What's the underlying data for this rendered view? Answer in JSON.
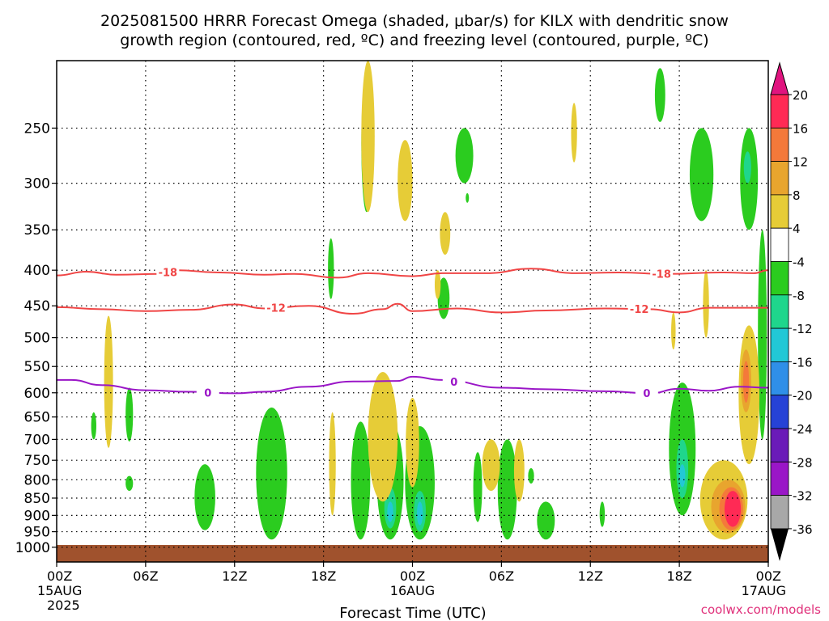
{
  "title_line1": "2025081500 HRRR Forecast Omega (shaded, μbar/s) for KILX with dendritic snow",
  "title_line2": "growth region (contoured, red, ºC) and freezing level (contoured, purple, ºC)",
  "credit": "coolwx.com/models",
  "chart_data": {
    "type": "heatmap",
    "xlabel": "Forecast Time (UTC)",
    "ylabel": "",
    "xlim_hours": [
      0,
      48
    ],
    "ylim": [
      1050,
      200
    ],
    "yscale": "log",
    "grid": true,
    "x_ticks": [
      {
        "h": 0,
        "label": "00Z",
        "sub": "15AUG",
        "sub2": "2025"
      },
      {
        "h": 6,
        "label": "06Z"
      },
      {
        "h": 12,
        "label": "12Z"
      },
      {
        "h": 18,
        "label": "18Z"
      },
      {
        "h": 24,
        "label": "00Z",
        "sub": "16AUG"
      },
      {
        "h": 30,
        "label": "06Z"
      },
      {
        "h": 36,
        "label": "12Z"
      },
      {
        "h": 42,
        "label": "18Z"
      },
      {
        "h": 48,
        "label": "00Z",
        "sub": "17AUG"
      }
    ],
    "y_ticks": [
      250,
      300,
      350,
      400,
      450,
      500,
      550,
      600,
      650,
      700,
      750,
      800,
      850,
      900,
      950,
      1000
    ],
    "colorbar": {
      "levels": [
        "20",
        "16",
        "12",
        "8",
        "4",
        "-4",
        "-8",
        "-12",
        "-16",
        "-20",
        "-24",
        "-28",
        "-32",
        "-36"
      ],
      "colors": [
        "#ff2a55",
        "#f4793a",
        "#e8a52e",
        "#e6cc37",
        "#ffffff",
        "#2bcc1f",
        "#1fd68c",
        "#22c8d6",
        "#2f8fe8",
        "#2642d6",
        "#6a1bb8",
        "#9a16c7",
        "#a8a8a8"
      ],
      "top_color": "#e0147f",
      "bottom_color": "#000000"
    },
    "contours": [
      {
        "name": "-18",
        "color": "#f04545",
        "label_hours": [
          7.5,
          40.8
        ],
        "points": [
          [
            0,
            407
          ],
          [
            2,
            402
          ],
          [
            4,
            406
          ],
          [
            7,
            405
          ],
          [
            8,
            400
          ],
          [
            11,
            403
          ],
          [
            14,
            406
          ],
          [
            16,
            405
          ],
          [
            19,
            410
          ],
          [
            21,
            404
          ],
          [
            24,
            408
          ],
          [
            26,
            404
          ],
          [
            29,
            404
          ],
          [
            32,
            398
          ],
          [
            35,
            404
          ],
          [
            38,
            403
          ],
          [
            41,
            405
          ],
          [
            45,
            403
          ],
          [
            47,
            404
          ],
          [
            48,
            400
          ]
        ]
      },
      {
        "name": "-12",
        "color": "#f04545",
        "label_hours": [
          14.8,
          39.3
        ],
        "points": [
          [
            0,
            452
          ],
          [
            3,
            455
          ],
          [
            6,
            458
          ],
          [
            9,
            456
          ],
          [
            12,
            448
          ],
          [
            14,
            454
          ],
          [
            17,
            450
          ],
          [
            20,
            462
          ],
          [
            22,
            455
          ],
          [
            23,
            447
          ],
          [
            24,
            458
          ],
          [
            27,
            454
          ],
          [
            30,
            460
          ],
          [
            33,
            457
          ],
          [
            37,
            454
          ],
          [
            40,
            455
          ],
          [
            42,
            460
          ],
          [
            44,
            453
          ],
          [
            48,
            453
          ]
        ]
      },
      {
        "name": "0",
        "color": "#9a16c7",
        "label_hours": [
          10.2,
          26.8,
          39.8
        ],
        "points": [
          [
            0,
            575
          ],
          [
            1,
            575
          ],
          [
            3,
            585
          ],
          [
            6,
            595
          ],
          [
            9,
            598
          ],
          [
            12,
            601
          ],
          [
            14,
            598
          ],
          [
            17,
            588
          ],
          [
            20,
            578
          ],
          [
            23,
            577
          ],
          [
            24,
            569
          ],
          [
            26,
            575
          ],
          [
            30,
            590
          ],
          [
            33,
            593
          ],
          [
            37,
            597
          ],
          [
            40,
            601
          ],
          [
            42,
            592
          ],
          [
            44,
            596
          ],
          [
            46,
            588
          ],
          [
            48,
            590
          ]
        ]
      }
    ],
    "series": [
      {
        "name": "-4",
        "values": [
          {
            "h": 2.5,
            "top": 640,
            "bottom": 700,
            "w": 0.35
          },
          {
            "h": 4.9,
            "top": 590,
            "bottom": 705,
            "w": 0.5
          },
          {
            "h": 4.9,
            "top": 790,
            "bottom": 830,
            "w": 0.5
          },
          {
            "h": 10.0,
            "top": 760,
            "bottom": 945,
            "w": 1.4
          },
          {
            "h": 14.5,
            "top": 630,
            "bottom": 975,
            "w": 2.1
          },
          {
            "h": 14.5,
            "top": 780,
            "bottom": 935,
            "w": 1.5
          },
          {
            "h": 18.5,
            "top": 360,
            "bottom": 440,
            "w": 0.4
          },
          {
            "h": 20.5,
            "top": 660,
            "bottom": 975,
            "w": 1.3
          },
          {
            "h": 22.5,
            "top": 660,
            "bottom": 975,
            "w": 1.8
          },
          {
            "h": 20.9,
            "top": 210,
            "bottom": 330,
            "w": 0.7
          },
          {
            "h": 24.5,
            "top": 670,
            "bottom": 975,
            "w": 2.0
          },
          {
            "h": 26.1,
            "top": 410,
            "bottom": 470,
            "w": 0.8
          },
          {
            "h": 27.5,
            "top": 250,
            "bottom": 300,
            "w": 1.2
          },
          {
            "h": 27.7,
            "top": 310,
            "bottom": 320,
            "w": 0.2
          },
          {
            "h": 28.4,
            "top": 730,
            "bottom": 920,
            "w": 0.6
          },
          {
            "h": 30.4,
            "top": 700,
            "bottom": 975,
            "w": 1.3
          },
          {
            "h": 32.0,
            "top": 770,
            "bottom": 810,
            "w": 0.4
          },
          {
            "h": 33.0,
            "top": 860,
            "bottom": 975,
            "w": 1.2
          },
          {
            "h": 36.8,
            "top": 860,
            "bottom": 935,
            "w": 0.35
          },
          {
            "h": 40.7,
            "top": 205,
            "bottom": 245,
            "w": 0.7
          },
          {
            "h": 42.2,
            "top": 580,
            "bottom": 900,
            "w": 1.8
          },
          {
            "h": 43.5,
            "top": 250,
            "bottom": 340,
            "w": 1.6
          },
          {
            "h": 46.7,
            "top": 250,
            "bottom": 350,
            "w": 1.2
          },
          {
            "h": 47.6,
            "top": 350,
            "bottom": 700,
            "w": 0.6
          }
        ]
      },
      {
        "name": "-8",
        "values": [
          {
            "h": 22.5,
            "top": 820,
            "bottom": 940,
            "w": 0.8
          },
          {
            "h": 24.5,
            "top": 830,
            "bottom": 950,
            "w": 0.8
          },
          {
            "h": 42.2,
            "top": 700,
            "bottom": 850,
            "w": 0.8
          },
          {
            "h": 46.6,
            "top": 270,
            "bottom": 300,
            "w": 0.5
          }
        ]
      },
      {
        "name": "-12",
        "values": [
          {
            "h": 22.5,
            "top": 860,
            "bottom": 920,
            "w": 0.4
          },
          {
            "h": 24.5,
            "top": 860,
            "bottom": 930,
            "w": 0.4
          },
          {
            "h": 42.2,
            "top": 760,
            "bottom": 820,
            "w": 0.4
          }
        ]
      },
      {
        "name": "4",
        "values": [
          {
            "h": 3.5,
            "top": 465,
            "bottom": 720,
            "w": 0.6
          },
          {
            "h": 21.0,
            "top": 200,
            "bottom": 330,
            "w": 0.9
          },
          {
            "h": 23.5,
            "top": 260,
            "bottom": 340,
            "w": 1.0
          },
          {
            "h": 26.2,
            "top": 330,
            "bottom": 380,
            "w": 0.7
          },
          {
            "h": 25.7,
            "top": 400,
            "bottom": 440,
            "w": 0.4
          },
          {
            "h": 18.6,
            "top": 640,
            "bottom": 900,
            "w": 0.45
          },
          {
            "h": 22.0,
            "top": 560,
            "bottom": 860,
            "w": 2.0
          },
          {
            "h": 24.0,
            "top": 610,
            "bottom": 820,
            "w": 0.9
          },
          {
            "h": 29.3,
            "top": 700,
            "bottom": 830,
            "w": 1.2
          },
          {
            "h": 31.2,
            "top": 700,
            "bottom": 860,
            "w": 0.7
          },
          {
            "h": 34.9,
            "top": 230,
            "bottom": 280,
            "w": 0.4
          },
          {
            "h": 41.6,
            "top": 460,
            "bottom": 520,
            "w": 0.3
          },
          {
            "h": 43.8,
            "top": 400,
            "bottom": 500,
            "w": 0.4
          },
          {
            "h": 45.0,
            "top": 750,
            "bottom": 975,
            "w": 3.2
          },
          {
            "h": 46.7,
            "top": 480,
            "bottom": 760,
            "w": 1.4
          }
        ]
      },
      {
        "name": "8",
        "values": [
          {
            "h": 46.5,
            "top": 520,
            "bottom": 640,
            "w": 0.7
          },
          {
            "h": 45.3,
            "top": 800,
            "bottom": 955,
            "w": 2.3
          }
        ]
      },
      {
        "name": "12",
        "values": [
          {
            "h": 46.5,
            "top": 540,
            "bottom": 620,
            "w": 0.4
          },
          {
            "h": 45.5,
            "top": 820,
            "bottom": 945,
            "w": 1.6
          }
        ]
      },
      {
        "name": "16",
        "values": [
          {
            "h": 45.6,
            "top": 830,
            "bottom": 935,
            "w": 1.1
          }
        ]
      },
      {
        "name": "20",
        "values": [
          {
            "h": 45.6,
            "top": 840,
            "bottom": 925,
            "w": 0.6
          }
        ]
      }
    ]
  }
}
